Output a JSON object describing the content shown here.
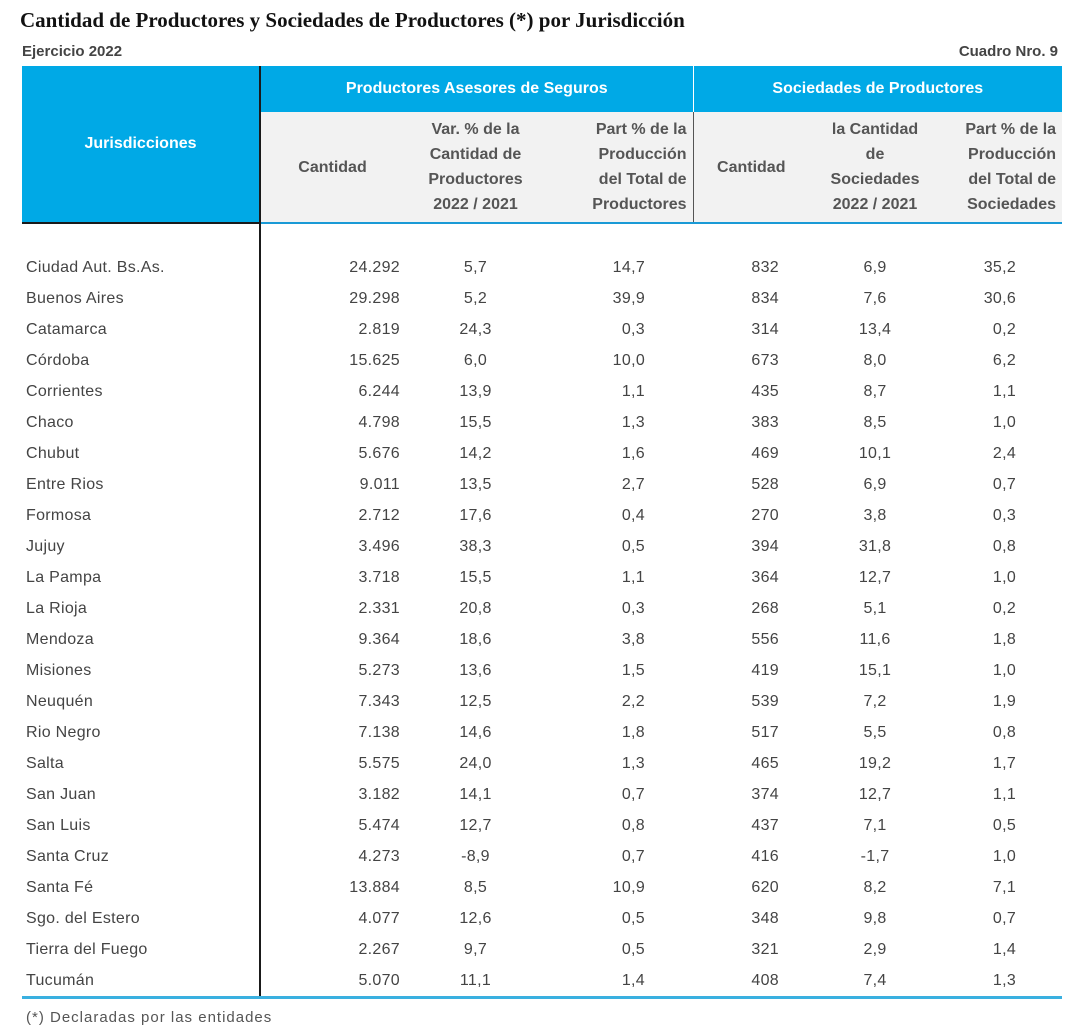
{
  "title": "Cantidad de Productores y Sociedades de Productores (*) por Jurisdicción",
  "ejercicio": "Ejercicio 2022",
  "cuadro": "Cuadro Nro. 9",
  "header": {
    "jurisdicciones": "Jurisdicciones",
    "group1": "Productores Asesores de Seguros",
    "group2": "Sociedades de Productores",
    "g1_cantidad": "Cantidad",
    "g1_var": [
      "Var. %   de la",
      "Cantidad de",
      "Productores",
      "2022 / 2021"
    ],
    "g1_part": [
      "Part % de la",
      "Producción",
      "del Total de",
      "Productores"
    ],
    "g2_cantidad": "Cantidad",
    "g2_var": [
      "la  Cantidad",
      "de",
      "Sociedades",
      "2022 / 2021"
    ],
    "g2_part": [
      "Part % de la",
      "Producción",
      "del Total de",
      "Sociedades"
    ]
  },
  "rows": [
    [
      "Ciudad Aut. Bs.As.",
      "24.292",
      "5,7",
      "14,7",
      "832",
      "6,9",
      "35,2"
    ],
    [
      "Buenos Aires",
      "29.298",
      "5,2",
      "39,9",
      "834",
      "7,6",
      "30,6"
    ],
    [
      "Catamarca",
      "2.819",
      "24,3",
      "0,3",
      "314",
      "13,4",
      "0,2"
    ],
    [
      "Córdoba",
      "15.625",
      "6,0",
      "10,0",
      "673",
      "8,0",
      "6,2"
    ],
    [
      "Corrientes",
      "6.244",
      "13,9",
      "1,1",
      "435",
      "8,7",
      "1,1"
    ],
    [
      "Chaco",
      "4.798",
      "15,5",
      "1,3",
      "383",
      "8,5",
      "1,0"
    ],
    [
      "Chubut",
      "5.676",
      "14,2",
      "1,6",
      "469",
      "10,1",
      "2,4"
    ],
    [
      "Entre Rios",
      "9.011",
      "13,5",
      "2,7",
      "528",
      "6,9",
      "0,7"
    ],
    [
      "Formosa",
      "2.712",
      "17,6",
      "0,4",
      "270",
      "3,8",
      "0,3"
    ],
    [
      "Jujuy",
      "3.496",
      "38,3",
      "0,5",
      "394",
      "31,8",
      "0,8"
    ],
    [
      "La Pampa",
      "3.718",
      "15,5",
      "1,1",
      "364",
      "12,7",
      "1,0"
    ],
    [
      "La Rioja",
      "2.331",
      "20,8",
      "0,3",
      "268",
      "5,1",
      "0,2"
    ],
    [
      "Mendoza",
      "9.364",
      "18,6",
      "3,8",
      "556",
      "11,6",
      "1,8"
    ],
    [
      "Misiones",
      "5.273",
      "13,6",
      "1,5",
      "419",
      "15,1",
      "1,0"
    ],
    [
      "Neuquén",
      "7.343",
      "12,5",
      "2,2",
      "539",
      "7,2",
      "1,9"
    ],
    [
      "Rio Negro",
      "7.138",
      "14,6",
      "1,8",
      "517",
      "5,5",
      "0,8"
    ],
    [
      "Salta",
      "5.575",
      "24,0",
      "1,3",
      "465",
      "19,2",
      "1,7"
    ],
    [
      "San Juan",
      "3.182",
      "14,1",
      "0,7",
      "374",
      "12,7",
      "1,1"
    ],
    [
      "San Luis",
      "5.474",
      "12,7",
      "0,8",
      "437",
      "7,1",
      "0,5"
    ],
    [
      "Santa Cruz",
      "4.273",
      "-8,9",
      "0,7",
      "416",
      "-1,7",
      "1,0"
    ],
    [
      "Santa Fé",
      "13.884",
      "8,5",
      "10,9",
      "620",
      "8,2",
      "7,1"
    ],
    [
      "Sgo. del Estero",
      "4.077",
      "12,6",
      "0,5",
      "348",
      "9,8",
      "0,7"
    ],
    [
      "Tierra del Fuego",
      "2.267",
      "9,7",
      "0,5",
      "321",
      "2,9",
      "1,4"
    ],
    [
      "Tucumán",
      "5.070",
      "11,1",
      "1,4",
      "408",
      "7,4",
      "1,3"
    ]
  ],
  "footnote": "(*) Declaradas por las entidades"
}
